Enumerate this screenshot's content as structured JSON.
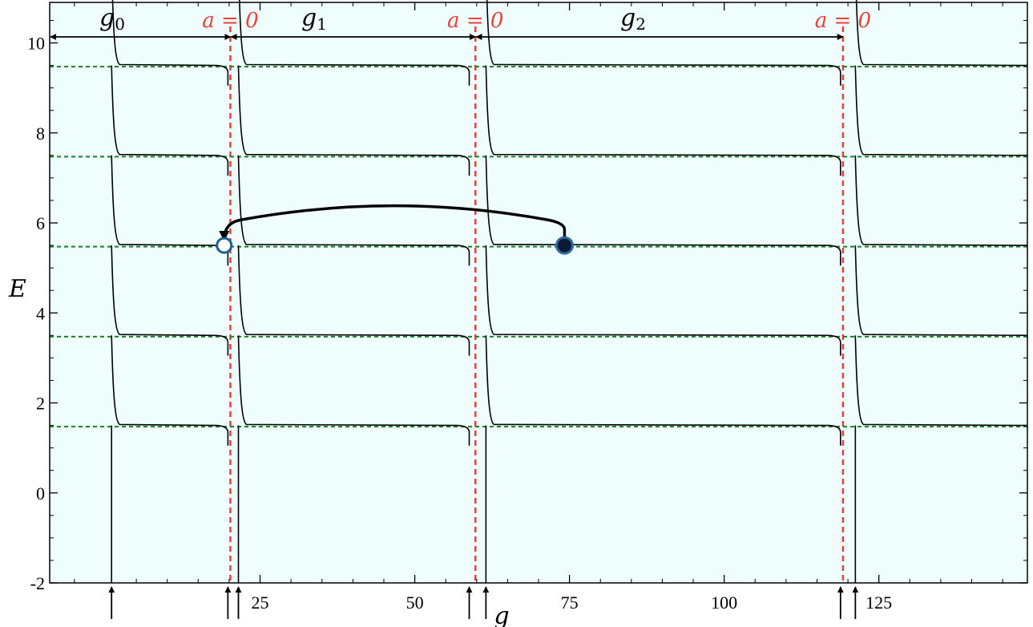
{
  "chart_data": {
    "type": "line",
    "xlabel": "g",
    "ylabel": "E",
    "xlim": [
      -9,
      149
    ],
    "ylim": [
      -2,
      10.9
    ],
    "x_ticks": [
      25,
      50,
      75,
      100,
      125
    ],
    "x_tick_labels": [
      "25",
      "50",
      "75",
      "100",
      "125"
    ],
    "y_ticks": [
      -2,
      0,
      2,
      4,
      6,
      8,
      10
    ],
    "y_tick_labels": [
      "-2",
      "0",
      "2",
      "4",
      "6",
      "8",
      "10"
    ],
    "background": "#effdfd",
    "level_color": "#1a7f2a",
    "critical_line_color": "#e8413a",
    "energy_levels": [
      1.5,
      3.5,
      5.5,
      7.5,
      9.5
    ],
    "critical_lines": [
      {
        "g": 20.2,
        "label": "a = 0"
      },
      {
        "g": 59.8,
        "label": "a = 0"
      },
      {
        "g": 119.2,
        "label": "a = 0"
      }
    ],
    "singular_points": [
      1,
      19.8,
      21.5,
      58.8,
      61.5,
      118.8,
      121.2
    ],
    "gap_labels": [
      {
        "base": "g",
        "sub": "0"
      },
      {
        "base": "g",
        "sub": "1"
      },
      {
        "base": "g",
        "sub": "2"
      }
    ],
    "gap_intervals": [
      [
        -9,
        20.2
      ],
      [
        20.2,
        59.8
      ],
      [
        59.8,
        119.2
      ]
    ],
    "open_marker": {
      "g": 19.2,
      "E": 5.5
    },
    "filled_marker": {
      "g": 74.2,
      "E": 5.5
    },
    "jump_arrow": {
      "from_g": 74.2,
      "to_g": 19.2,
      "peak_E": 6.45,
      "bottom_E": 5.78
    }
  }
}
